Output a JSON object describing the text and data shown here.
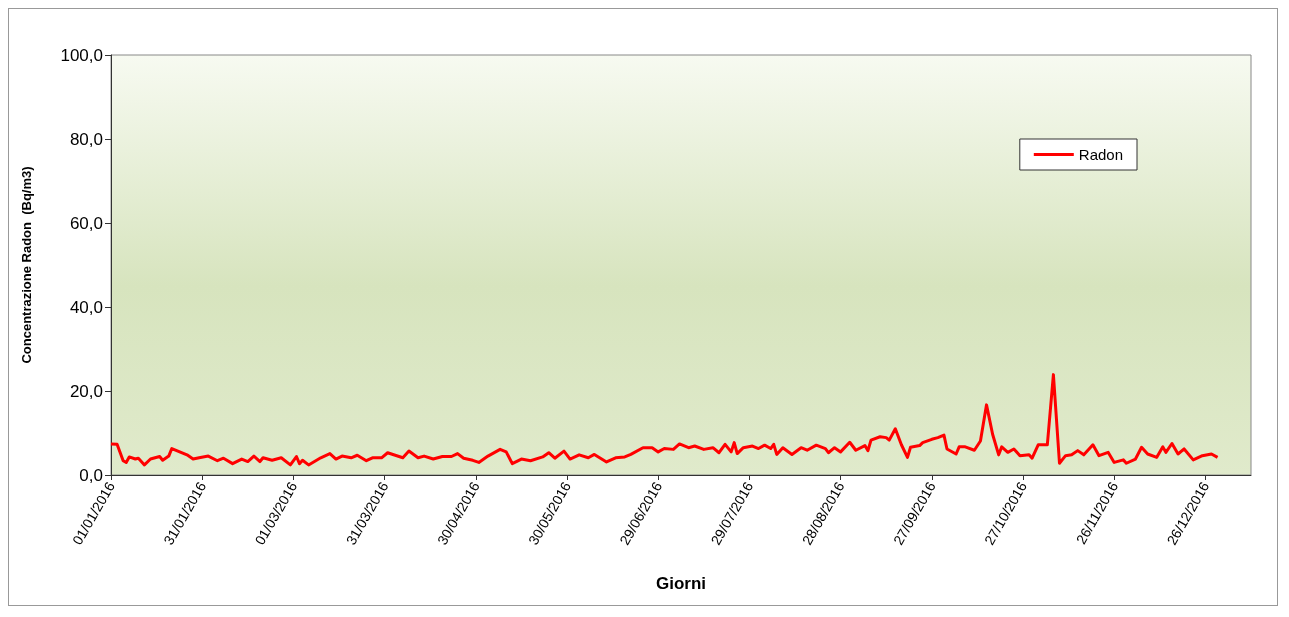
{
  "chart_data": {
    "type": "line",
    "xlabel": "Giorni",
    "ylabel": "Concentrazione Radon  (Bq/m3)",
    "x": [
      "2016-01-01",
      "2016-01-03",
      "2016-01-05",
      "2016-01-06",
      "2016-01-07",
      "2016-01-09",
      "2016-01-10",
      "2016-01-12",
      "2016-01-14",
      "2016-01-17",
      "2016-01-18",
      "2016-01-20",
      "2016-01-21",
      "2016-01-23",
      "2016-01-26",
      "2016-01-28",
      "2016-01-30",
      "2016-02-02",
      "2016-02-05",
      "2016-02-07",
      "2016-02-10",
      "2016-02-13",
      "2016-02-15",
      "2016-02-17",
      "2016-02-19",
      "2016-02-20",
      "2016-02-23",
      "2016-02-26",
      "2016-02-29",
      "2016-03-02",
      "2016-03-03",
      "2016-03-04",
      "2016-03-06",
      "2016-03-10",
      "2016-03-13",
      "2016-03-15",
      "2016-03-17",
      "2016-03-20",
      "2016-03-22",
      "2016-03-25",
      "2016-03-27",
      "2016-03-30",
      "2016-04-01",
      "2016-04-06",
      "2016-04-08",
      "2016-04-11",
      "2016-04-13",
      "2016-04-16",
      "2016-04-19",
      "2016-04-22",
      "2016-04-24",
      "2016-04-26",
      "2016-04-29",
      "2016-05-01",
      "2016-05-04",
      "2016-05-08",
      "2016-05-10",
      "2016-05-12",
      "2016-05-15",
      "2016-05-18",
      "2016-05-22",
      "2016-05-24",
      "2016-05-26",
      "2016-05-29",
      "2016-05-31",
      "2016-06-03",
      "2016-06-06",
      "2016-06-08",
      "2016-06-12",
      "2016-06-15",
      "2016-06-18",
      "2016-06-20",
      "2016-06-24",
      "2016-06-27",
      "2016-06-29",
      "2016-07-01",
      "2016-07-04",
      "2016-07-06",
      "2016-07-09",
      "2016-07-11",
      "2016-07-14",
      "2016-07-17",
      "2016-07-19",
      "2016-07-21",
      "2016-07-23",
      "2016-07-24",
      "2016-07-25",
      "2016-07-27",
      "2016-07-30",
      "2016-08-01",
      "2016-08-03",
      "2016-08-05",
      "2016-08-06",
      "2016-08-07",
      "2016-08-09",
      "2016-08-12",
      "2016-08-15",
      "2016-08-17",
      "2016-08-20",
      "2016-08-23",
      "2016-08-24",
      "2016-08-26",
      "2016-08-28",
      "2016-08-31",
      "2016-09-02",
      "2016-09-05",
      "2016-09-06",
      "2016-09-07",
      "2016-09-10",
      "2016-09-12",
      "2016-09-13",
      "2016-09-15",
      "2016-09-17",
      "2016-09-19",
      "2016-09-20",
      "2016-09-23",
      "2016-09-24",
      "2016-09-27",
      "2016-09-29",
      "2016-10-01",
      "2016-10-02",
      "2016-10-05",
      "2016-10-06",
      "2016-10-08",
      "2016-10-11",
      "2016-10-13",
      "2016-10-15",
      "2016-10-17",
      "2016-10-19",
      "2016-10-20",
      "2016-10-22",
      "2016-10-24",
      "2016-10-26",
      "2016-10-29",
      "2016-10-30",
      "2016-11-01",
      "2016-11-04",
      "2016-11-06",
      "2016-11-08",
      "2016-11-10",
      "2016-11-12",
      "2016-11-14",
      "2016-11-16",
      "2016-11-19",
      "2016-11-21",
      "2016-11-24",
      "2016-11-26",
      "2016-11-29",
      "2016-11-30",
      "2016-12-03",
      "2016-12-05",
      "2016-12-07",
      "2016-12-10",
      "2016-12-12",
      "2016-12-13",
      "2016-12-15",
      "2016-12-17",
      "2016-12-19",
      "2016-12-22",
      "2016-12-25",
      "2016-12-28",
      "2016-12-30"
    ],
    "series": [
      {
        "name": "Radon",
        "color": "#ff0000",
        "values": [
          7.4,
          7.3,
          3.4,
          3.0,
          4.3,
          3.8,
          4.0,
          2.4,
          3.8,
          4.4,
          3.5,
          4.5,
          6.3,
          5.7,
          4.8,
          3.8,
          4.1,
          4.5,
          3.4,
          4.0,
          2.7,
          3.8,
          3.2,
          4.5,
          3.2,
          4.1,
          3.5,
          4.1,
          2.4,
          4.4,
          2.7,
          3.5,
          2.4,
          4.1,
          5.1,
          3.8,
          4.5,
          4.1,
          4.7,
          3.4,
          4.1,
          4.1,
          5.3,
          4.1,
          5.7,
          4.1,
          4.5,
          3.8,
          4.4,
          4.4,
          5.1,
          4.0,
          3.5,
          3.0,
          4.5,
          6.1,
          5.5,
          2.7,
          3.8,
          3.4,
          4.3,
          5.3,
          4.0,
          5.7,
          3.8,
          4.8,
          4.1,
          4.9,
          3.1,
          4.1,
          4.3,
          4.9,
          6.5,
          6.5,
          5.5,
          6.3,
          6.1,
          7.4,
          6.5,
          6.9,
          6.1,
          6.5,
          5.3,
          7.3,
          5.5,
          7.7,
          5.1,
          6.5,
          6.9,
          6.3,
          7.1,
          6.3,
          7.3,
          4.9,
          6.5,
          4.9,
          6.5,
          5.9,
          7.1,
          6.3,
          5.3,
          6.5,
          5.5,
          7.8,
          5.9,
          7.0,
          5.8,
          8.3,
          9.1,
          8.9,
          8.3,
          11.0,
          7.2,
          4.2,
          6.6,
          7.0,
          7.7,
          8.5,
          8.9,
          9.5,
          6.2,
          5.0,
          6.7,
          6.7,
          5.9,
          8.1,
          16.7,
          9.7,
          4.8,
          6.7,
          5.4,
          6.2,
          4.6,
          4.8,
          4.0,
          7.2,
          7.2,
          23.9,
          2.8,
          4.6,
          4.8,
          5.8,
          4.8,
          7.2,
          4.6,
          5.4,
          3.0,
          3.6,
          2.8,
          3.8,
          6.6,
          5.0,
          4.2,
          6.7,
          5.4,
          7.5,
          5.0,
          6.2,
          3.6,
          4.6,
          5.0,
          4.2
        ]
      }
    ],
    "xlim": [
      "2016-01-01",
      "2017-01-10"
    ],
    "xticks": [
      {
        "value": "2016-01-01",
        "label": "01/01/2016"
      },
      {
        "value": "2016-01-31",
        "label": "31/01/2016"
      },
      {
        "value": "2016-03-01",
        "label": "01/03/2016"
      },
      {
        "value": "2016-03-31",
        "label": "31/03/2016"
      },
      {
        "value": "2016-04-30",
        "label": "30/04/2016"
      },
      {
        "value": "2016-05-30",
        "label": "30/05/2016"
      },
      {
        "value": "2016-06-29",
        "label": "29/06/2016"
      },
      {
        "value": "2016-07-29",
        "label": "29/07/2016"
      },
      {
        "value": "2016-08-28",
        "label": "28/08/2016"
      },
      {
        "value": "2016-09-27",
        "label": "27/09/2016"
      },
      {
        "value": "2016-10-27",
        "label": "27/10/2016"
      },
      {
        "value": "2016-11-26",
        "label": "26/11/2016"
      },
      {
        "value": "2016-12-26",
        "label": "26/12/2016"
      }
    ],
    "ylim": [
      0,
      100
    ],
    "yticks": [
      {
        "value": 0,
        "label": "0,0"
      },
      {
        "value": 20,
        "label": "20,0"
      },
      {
        "value": 40,
        "label": "40,0"
      },
      {
        "value": 60,
        "label": "60,0"
      },
      {
        "value": 80,
        "label": "80,0"
      },
      {
        "value": 100,
        "label": "100,0"
      }
    ],
    "grid": false,
    "legend": "top right"
  }
}
